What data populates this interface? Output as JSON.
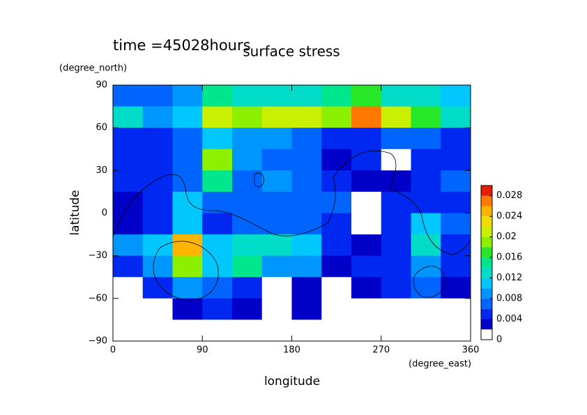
{
  "chart_data": {
    "type": "contour",
    "title": "surface stress",
    "subtitle": "time =45028hours",
    "x_label": "longitude",
    "x_unit": "(degree_east)",
    "y_label": "latitude",
    "y_unit": "(degree_north)",
    "x": [
      15,
      45,
      75,
      105,
      135,
      165,
      195,
      225,
      255,
      285,
      315,
      345
    ],
    "y": [
      82.5,
      67.5,
      52.5,
      37.5,
      22.5,
      7.5,
      -7.5,
      -22.5,
      -37.5,
      -52.5,
      -67.5,
      -82.5
    ],
    "values": [
      [
        0.006,
        0.006,
        0.008,
        0.014,
        0.012,
        0.012,
        0.012,
        0.014,
        0.016,
        0.012,
        0.012,
        0.01
      ],
      [
        0.012,
        0.008,
        0.01,
        0.02,
        0.018,
        0.02,
        0.02,
        0.018,
        0.026,
        0.02,
        0.016,
        0.012
      ],
      [
        0.004,
        0.004,
        0.006,
        0.01,
        0.008,
        0.008,
        0.006,
        0.004,
        0.004,
        0.006,
        0.006,
        0.004
      ],
      [
        0.004,
        0.004,
        0.006,
        0.018,
        0.008,
        0.006,
        0.006,
        0.002,
        0.004,
        0,
        0.004,
        0.004
      ],
      [
        0.004,
        0.004,
        0.006,
        0.014,
        0.006,
        0.008,
        0.006,
        0.004,
        0.002,
        0.002,
        0.004,
        0.006
      ],
      [
        0.002,
        0.004,
        0.01,
        0.006,
        0.006,
        0.006,
        0.006,
        0.006,
        0,
        0.004,
        0.004,
        0.004
      ],
      [
        0.002,
        0.004,
        0.01,
        0.004,
        0.006,
        0.006,
        0.006,
        0.004,
        0,
        0.004,
        0.01,
        0.006
      ],
      [
        0.008,
        0.01,
        0.024,
        0.01,
        0.012,
        0.012,
        0.01,
        0.004,
        0.002,
        0.004,
        0.012,
        0.004
      ],
      [
        0.004,
        0.008,
        0.018,
        0.01,
        0.014,
        0.008,
        0.008,
        0.002,
        0.004,
        0.004,
        0.008,
        0.004
      ],
      [
        0,
        0.004,
        0.008,
        0.006,
        0.004,
        0,
        0.002,
        0,
        0.002,
        0.004,
        0.006,
        0.002
      ],
      [
        0,
        0,
        0.002,
        0.004,
        0.002,
        0,
        0.002,
        0,
        0,
        0,
        0,
        0
      ],
      [
        0,
        0,
        0,
        0,
        0,
        0,
        0,
        0,
        0,
        0,
        0,
        0
      ]
    ],
    "xlim": [
      0,
      360
    ],
    "xticks": [
      0,
      90,
      180,
      270,
      360
    ],
    "ylim": [
      -90,
      90
    ],
    "yticks": [
      {
        "value": -90,
        "label": "−90"
      },
      {
        "value": -60,
        "label": "−60"
      },
      {
        "value": -30,
        "label": "−30"
      },
      0,
      30,
      60,
      90
    ],
    "levels": [
      0,
      0.002,
      0.004,
      0.006,
      0.008,
      0.01,
      0.012,
      0.014,
      0.016,
      0.018,
      0.02,
      0.022,
      0.024,
      0.026,
      0.028,
      0.03
    ],
    "colors": [
      "#ffffff",
      "#0000c8",
      "#0028f0",
      "#0064ff",
      "#0096ff",
      "#00c8ff",
      "#00dcc8",
      "#00e68c",
      "#28e628",
      "#8cf000",
      "#c8f000",
      "#f0dc00",
      "#ffb400",
      "#ff7800",
      "#e61e00"
    ],
    "clim": [
      0,
      0.03
    ],
    "cticks": [
      0,
      0.004,
      0.008,
      0.012,
      0.016,
      0.02,
      0.024,
      0.028
    ]
  }
}
